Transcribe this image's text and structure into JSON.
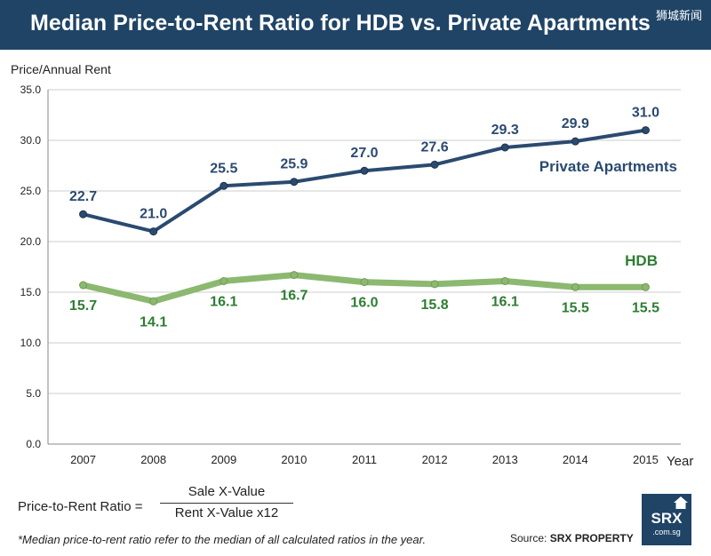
{
  "header": {
    "title": "Median Price-to-Rent Ratio for HDB vs. Private Apartments",
    "watermark": "狮城新闻"
  },
  "chart_data": {
    "type": "line",
    "title": "Median Price-to-Rent Ratio for HDB vs. Private Apartments",
    "ylabel": "Price/Annual Rent",
    "xlabel": "Year",
    "x": [
      "2007",
      "2008",
      "2009",
      "2010",
      "2011",
      "2012",
      "2013",
      "2014",
      "2015"
    ],
    "ylim": [
      0,
      35
    ],
    "yticks": [
      "0.0",
      "5.0",
      "10.0",
      "15.0",
      "20.0",
      "25.0",
      "30.0",
      "35.0"
    ],
    "grid": true,
    "series": [
      {
        "name": "Private Apartments",
        "color": "#2b4a6f",
        "values": [
          22.7,
          21.0,
          25.5,
          25.9,
          27.0,
          27.6,
          29.3,
          29.9,
          31.0
        ],
        "labels": [
          "22.7",
          "21.0",
          "25.5",
          "25.9",
          "27.0",
          "27.6",
          "29.3",
          "29.9",
          "31.0"
        ]
      },
      {
        "name": "HDB",
        "color": "#8cb870",
        "label_color": "#2e7d32",
        "values": [
          15.7,
          14.1,
          16.1,
          16.7,
          16.0,
          15.8,
          16.1,
          15.5,
          15.5
        ],
        "labels": [
          "15.7",
          "14.1",
          "16.1",
          "16.7",
          "16.0",
          "15.8",
          "16.1",
          "15.5",
          "15.5"
        ]
      }
    ]
  },
  "formula": {
    "lhs": "Price-to-Rent Ratio =",
    "numerator": "Sale X-Value",
    "denominator": "Rent X-Value x12"
  },
  "footnote": "*Median price-to-rent ratio refer to the median of all calculated ratios in the year.",
  "source": {
    "prefix": "Source:",
    "name": "SRX PROPERTY"
  },
  "logo": {
    "brand": "SRX",
    "domain": ".com.sg",
    "icon": "house-icon"
  }
}
